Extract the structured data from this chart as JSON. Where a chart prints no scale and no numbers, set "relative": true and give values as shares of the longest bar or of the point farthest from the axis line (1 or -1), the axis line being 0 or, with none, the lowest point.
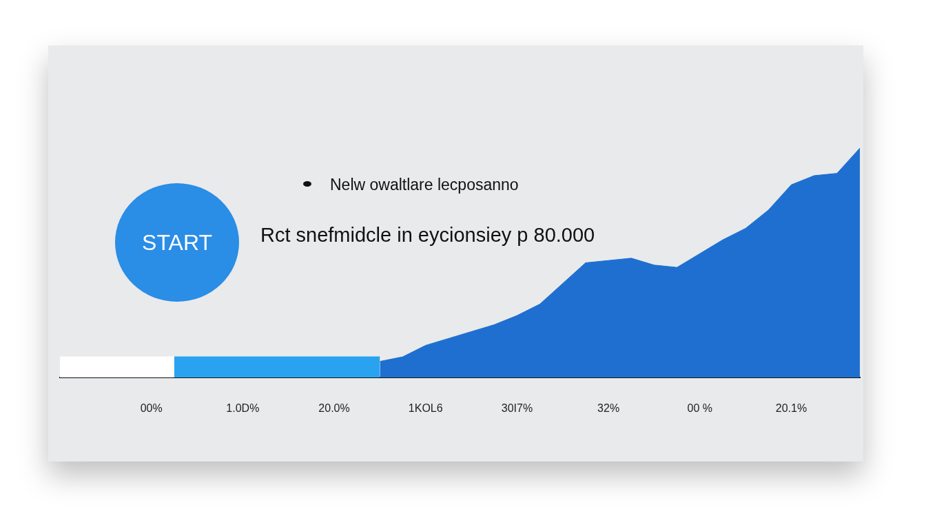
{
  "chart_data": {
    "type": "area",
    "relative": true,
    "categories": [
      null,
      null,
      null,
      null,
      "00%",
      null,
      null,
      null,
      "1.0D%",
      null,
      null,
      null,
      "20.0%",
      null,
      null,
      null,
      "1KOL6",
      null,
      null,
      null,
      "30I7%",
      null,
      null,
      null,
      "32%",
      null,
      null,
      null,
      "00 %",
      null,
      null,
      null,
      "20.1%",
      null,
      null,
      null
    ],
    "annotations": [
      "START",
      "Nelw owaltlare lecposanno",
      "Rct snefmidcle in eycionsiey p 80.000"
    ],
    "series": [
      {
        "color": "#ffffff",
        "values": [
          0.09,
          0.09,
          0.09,
          0.09,
          0.09,
          0.09,
          null,
          null,
          null,
          null,
          null,
          null,
          null,
          null,
          null,
          null,
          null,
          null,
          null,
          null,
          null,
          null,
          null,
          null,
          null,
          null,
          null,
          null,
          null,
          null,
          null,
          null,
          null,
          null,
          null,
          null
        ]
      },
      {
        "color": "#29a3ef",
        "values": [
          null,
          null,
          null,
          null,
          null,
          0.09,
          0.09,
          0.09,
          0.09,
          0.09,
          0.09,
          0.09,
          0.09,
          0.09,
          0.09,
          null,
          null,
          null,
          null,
          null,
          null,
          null,
          null,
          null,
          null,
          null,
          null,
          null,
          null,
          null,
          null,
          null,
          null,
          null,
          null,
          null
        ]
      },
      {
        "color": "#1e6fd0",
        "values": [
          null,
          null,
          null,
          null,
          null,
          null,
          null,
          null,
          null,
          null,
          null,
          null,
          null,
          null,
          0.07,
          0.09,
          0.14,
          0.17,
          0.2,
          0.23,
          0.27,
          0.32,
          0.41,
          0.5,
          0.51,
          0.52,
          0.49,
          0.48,
          0.54,
          0.6,
          0.65,
          0.73,
          0.84,
          0.88,
          0.89,
          1
        ]
      }
    ]
  }
}
